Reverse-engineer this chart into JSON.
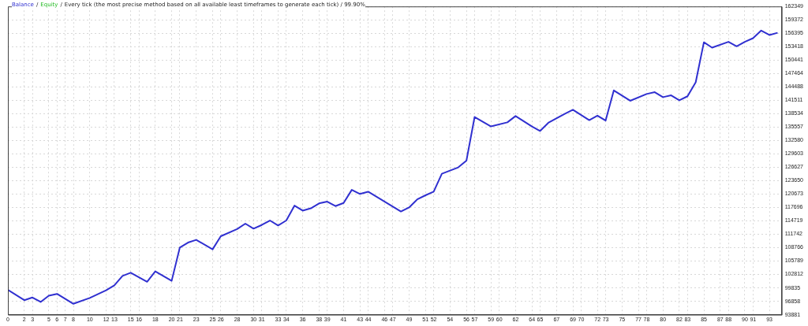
{
  "chart_data": {
    "type": "line",
    "title": "Every tick (the most precise method based on all available least timeframes to generate each tick) / 99.90%",
    "annotations": [
      "/",
      "/"
    ],
    "x": [
      0,
      2,
      3,
      4,
      5,
      6,
      8,
      10,
      12,
      13,
      14,
      15,
      17,
      18,
      20,
      21,
      22,
      23,
      25,
      26,
      28,
      29,
      30,
      31,
      32,
      33,
      34,
      35,
      36,
      37,
      38,
      39,
      40,
      41,
      42,
      43,
      44,
      48,
      49,
      50,
      51,
      52,
      53,
      55,
      56,
      57,
      59,
      61,
      62,
      64,
      65,
      66,
      68,
      69,
      71,
      72,
      73,
      74,
      76,
      78,
      79,
      80,
      81,
      82,
      83,
      84,
      85,
      86,
      88,
      89,
      90,
      91,
      92,
      93,
      94
    ],
    "series": [
      {
        "name": "Balance",
        "color": "#3030d0",
        "values": [
          99400,
          97100,
          97700,
          96700,
          98100,
          98500,
          96300,
          97600,
          99300,
          100400,
          102500,
          103200,
          101200,
          103500,
          101400,
          108800,
          109900,
          110500,
          108400,
          111300,
          112900,
          114100,
          113000,
          113800,
          114800,
          113700,
          114800,
          118100,
          117000,
          117500,
          118600,
          119000,
          118000,
          118700,
          121600,
          120700,
          121200,
          116800,
          117700,
          119500,
          120400,
          121200,
          125200,
          126600,
          128100,
          137800,
          135700,
          136600,
          138000,
          135700,
          134700,
          136500,
          138500,
          139400,
          137100,
          138100,
          137000,
          143700,
          141400,
          142900,
          143300,
          142200,
          142600,
          141500,
          142400,
          145500,
          154400,
          153200,
          154500,
          153500,
          154500,
          155300,
          157000,
          156000,
          156500
        ]
      },
      {
        "name": "Equity",
        "color": "#22bb22",
        "values": [
          null,
          null,
          null,
          null,
          null,
          null,
          null,
          null,
          null,
          null,
          null,
          null,
          null,
          null,
          null,
          null,
          null,
          null,
          null,
          null,
          null,
          null,
          null,
          null,
          null,
          null,
          null,
          null,
          null,
          null,
          null,
          null,
          null,
          null,
          null,
          null,
          null,
          null,
          null,
          null,
          null,
          null,
          null,
          null,
          null,
          null,
          null,
          null,
          null,
          null,
          null,
          null,
          null,
          null,
          null,
          null,
          null,
          null,
          null,
          null,
          null,
          null,
          null,
          null,
          null,
          null,
          null,
          null,
          null,
          null,
          null,
          null,
          null,
          null,
          null
        ]
      }
    ],
    "xlim": [
      0,
      94.5
    ],
    "xticks": [
      0,
      2,
      3,
      5,
      6,
      7,
      8,
      10,
      12,
      13,
      15,
      16,
      18,
      20,
      21,
      23,
      25,
      26,
      28,
      30,
      31,
      33,
      34,
      36,
      38,
      39,
      41,
      43,
      44,
      46,
      47,
      49,
      51,
      52,
      54,
      56,
      57,
      59,
      60,
      62,
      64,
      65,
      67,
      69,
      70,
      72,
      73,
      75,
      77,
      78,
      80,
      82,
      83,
      85,
      87,
      88,
      90,
      91,
      93
    ],
    "ylim": [
      93881,
      162349
    ],
    "yticks": [
      93881,
      96858,
      99835,
      102812,
      105789,
      108766,
      111742,
      114719,
      117696,
      120673,
      123650,
      126627,
      129603,
      132580,
      135557,
      138534,
      141511,
      144488,
      147464,
      150441,
      153418,
      156395,
      159372,
      162349
    ],
    "grid": true,
    "legend": "top left",
    "line_style": "solid",
    "marker": "none"
  }
}
